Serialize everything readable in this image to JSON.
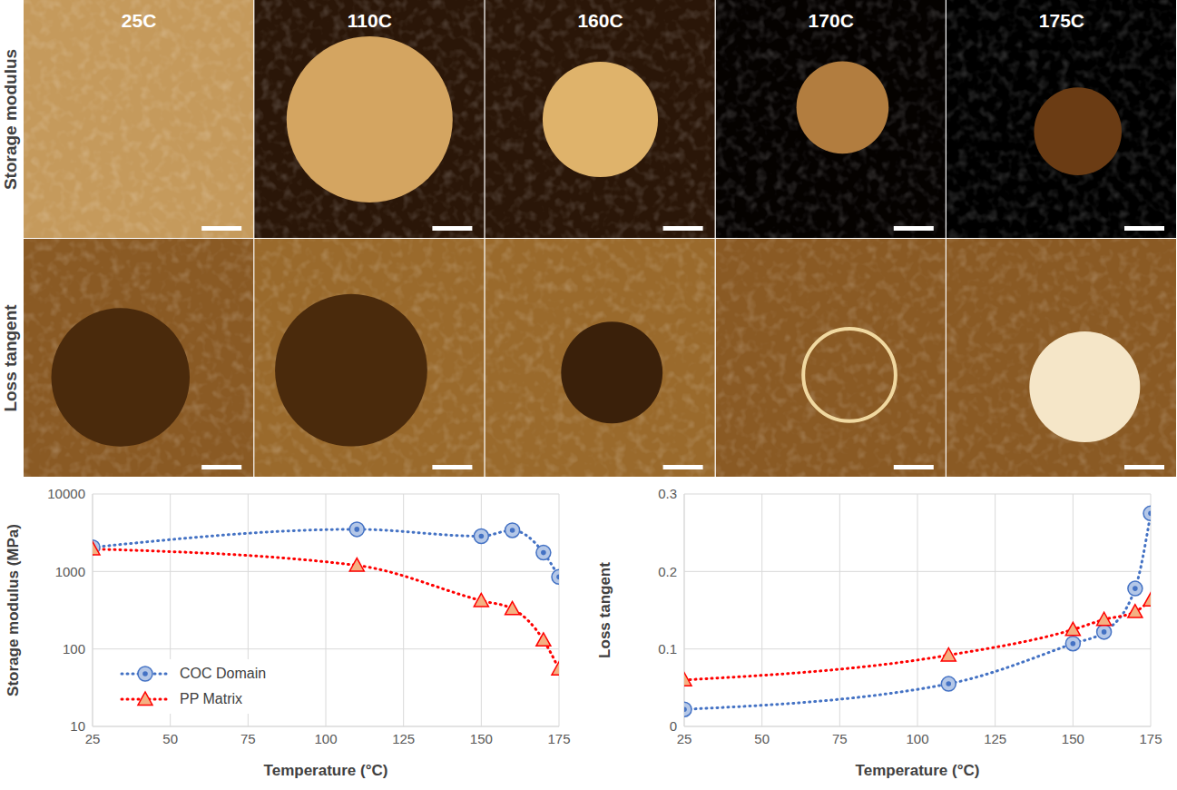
{
  "image_grid": {
    "columns": [
      "25C",
      "110C",
      "160C",
      "170C",
      "175C"
    ],
    "rows": [
      "Storage modulus",
      "Loss tangent"
    ]
  },
  "chart_data": [
    {
      "type": "line",
      "x_label": "Temperature (°C)",
      "y_label": "Storage modulus (MPa)",
      "x": [
        25,
        110,
        150,
        160,
        170,
        175
      ],
      "series": [
        {
          "name": "COC Domain",
          "color": "#4472c4",
          "marker": "circle",
          "line_style": "dotted",
          "values": [
            2050,
            3500,
            2850,
            3400,
            1750,
            850
          ]
        },
        {
          "name": "PP Matrix",
          "color": "#ff0000",
          "marker": "triangle",
          "line_style": "dotted",
          "values": [
            1950,
            1200,
            420,
            330,
            130,
            55
          ]
        }
      ],
      "xlim": [
        25,
        175
      ],
      "xticks": [
        25,
        50,
        75,
        100,
        125,
        150,
        175
      ],
      "ylim": [
        10,
        10000
      ],
      "yticks": [
        10,
        100,
        1000,
        10000
      ],
      "log": "y",
      "grid": true,
      "legend": "lower left"
    },
    {
      "type": "line",
      "x_label": "Temperature (°C)",
      "y_label": "Loss tangent",
      "x": [
        25,
        110,
        150,
        160,
        170,
        175
      ],
      "series": [
        {
          "name": "COC Domain",
          "color": "#4472c4",
          "marker": "circle",
          "line_style": "dotted",
          "values": [
            0.022,
            0.055,
            0.107,
            0.122,
            0.178,
            0.275
          ]
        },
        {
          "name": "PP Matrix",
          "color": "#ff0000",
          "marker": "triangle",
          "line_style": "dotted",
          "values": [
            0.06,
            0.092,
            0.125,
            0.138,
            0.148,
            0.163
          ]
        }
      ],
      "xlim": [
        25,
        175
      ],
      "xticks": [
        25,
        50,
        75,
        100,
        125,
        150,
        175
      ],
      "ylim": [
        0,
        0.3
      ],
      "yticks": [
        0,
        0.1,
        0.2,
        0.3
      ],
      "grid": true
    }
  ]
}
